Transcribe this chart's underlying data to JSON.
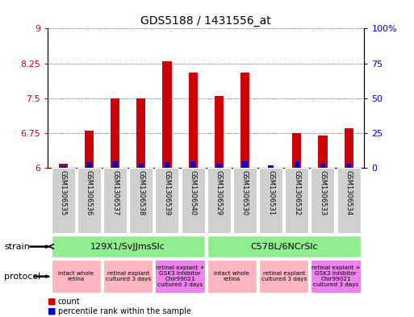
{
  "title": "GDS5188 / 1431556_at",
  "samples": [
    "GSM1306535",
    "GSM1306536",
    "GSM1306537",
    "GSM1306538",
    "GSM1306539",
    "GSM1306540",
    "GSM1306529",
    "GSM1306530",
    "GSM1306531",
    "GSM1306532",
    "GSM1306533",
    "GSM1306534"
  ],
  "count_values": [
    6.1,
    6.8,
    7.5,
    7.5,
    8.3,
    8.05,
    7.55,
    8.05,
    6.0,
    6.75,
    6.7,
    6.85
  ],
  "percentile_values": [
    2,
    4,
    5,
    3,
    4,
    5,
    3,
    5,
    2,
    5,
    3,
    3
  ],
  "ymin": 6.0,
  "ymax": 9.0,
  "yticks": [
    6.0,
    6.75,
    7.5,
    8.25,
    9.0
  ],
  "ytick_labels": [
    "6",
    "6.75",
    "7.5",
    "8.25",
    "9"
  ],
  "right_yticks": [
    0,
    25,
    50,
    75,
    100
  ],
  "right_ytick_labels": [
    "0",
    "25",
    "50",
    "75",
    "100%"
  ],
  "strain_groups": [
    {
      "label": "129X1/SvJJmsSlc",
      "start": 0,
      "end": 5,
      "color": "#90ee90"
    },
    {
      "label": "C57BL/6NCrSlc",
      "start": 6,
      "end": 11,
      "color": "#90ee90"
    }
  ],
  "protocol_groups": [
    {
      "label": "intact whole\nretina",
      "start": 0,
      "end": 1,
      "color": "#ffb6c1"
    },
    {
      "label": "retinal explant\ncultured 3 days",
      "start": 2,
      "end": 3,
      "color": "#ffb6c1"
    },
    {
      "label": "retinal explant +\nGSK3 inhibitor\nChir99021\ncultured 3 days",
      "start": 4,
      "end": 5,
      "color": "#ee82ee"
    },
    {
      "label": "intact whole\nretina",
      "start": 6,
      "end": 7,
      "color": "#ffb6c1"
    },
    {
      "label": "retinal explant\ncultured 3 days",
      "start": 8,
      "end": 9,
      "color": "#ffb6c1"
    },
    {
      "label": "retinal explant +\nGSK3 inhibitor\nChir99021\ncultured 3 days",
      "start": 10,
      "end": 11,
      "color": "#ee82ee"
    }
  ],
  "bar_color": "#cc0000",
  "blue_bar_color": "#0000cc",
  "tick_label_color_left": "#cc0000",
  "tick_label_color_right": "#0000cc",
  "bar_width": 0.35,
  "blue_bar_width": 0.2,
  "sample_label_gray": "#d0d0d0",
  "strain_label": "strain",
  "protocol_label": "protocol"
}
